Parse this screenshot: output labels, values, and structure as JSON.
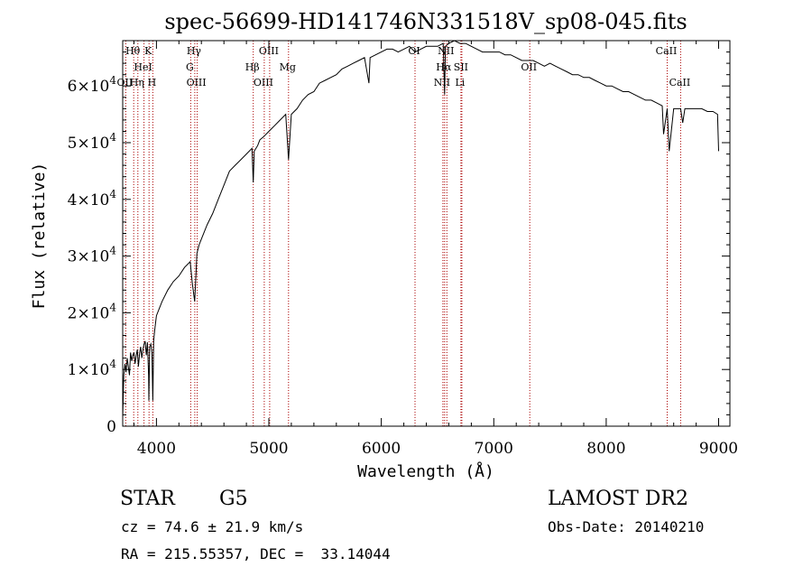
{
  "chart_data": {
    "type": "line",
    "title": "spec-56699-HD141746N331518V_sp08-045.fits",
    "xlabel": "Wavelength (Å)",
    "ylabel": "Flux (relative)",
    "xlim": [
      3700,
      9100
    ],
    "ylim": [
      0,
      68000
    ],
    "x_ticks": [
      4000,
      5000,
      6000,
      7000,
      8000,
      9000
    ],
    "x_tick_labels": [
      "4000",
      "5000",
      "6000",
      "7000",
      "8000",
      "9000"
    ],
    "y_ticks": [
      0,
      10000,
      20000,
      30000,
      40000,
      50000,
      60000
    ],
    "y_tick_labels": [
      {
        "mantissa": "0",
        "exp": ""
      },
      {
        "mantissa": "1×10",
        "exp": "4"
      },
      {
        "mantissa": "2×10",
        "exp": "4"
      },
      {
        "mantissa": "3×10",
        "exp": "4"
      },
      {
        "mantissa": "4×10",
        "exp": "4"
      },
      {
        "mantissa": "5×10",
        "exp": "4"
      },
      {
        "mantissa": "6×10",
        "exp": "4"
      }
    ],
    "grid": false,
    "series": [
      {
        "x": [
          3700,
          3710,
          3720,
          3730,
          3740,
          3750,
          3760,
          3770,
          3780,
          3790,
          3800,
          3810,
          3820,
          3830,
          3840,
          3850,
          3860,
          3870,
          3880,
          3890,
          3900,
          3910,
          3920,
          3930,
          3933,
          3940,
          3950,
          3960,
          3968,
          3975,
          3985,
          4000,
          4050,
          4100,
          4150,
          4200,
          4250,
          4300,
          4320,
          4340,
          4360,
          4380,
          4400,
          4450,
          4500,
          4550,
          4600,
          4650,
          4700,
          4750,
          4800,
          4850,
          4861,
          4870,
          4900,
          4920,
          4950,
          5000,
          5050,
          5100,
          5150,
          5175,
          5200,
          5250,
          5300,
          5350,
          5400,
          5450,
          5500,
          5550,
          5600,
          5650,
          5700,
          5750,
          5800,
          5850,
          5890,
          5900,
          5950,
          6000,
          6050,
          6100,
          6150,
          6200,
          6250,
          6300,
          6350,
          6400,
          6450,
          6500,
          6550,
          6563,
          6570,
          6600,
          6650,
          6700,
          6750,
          6800,
          6850,
          6900,
          6950,
          7000,
          7050,
          7100,
          7150,
          7200,
          7250,
          7300,
          7350,
          7400,
          7450,
          7500,
          7550,
          7600,
          7650,
          7700,
          7750,
          7800,
          7850,
          7900,
          7950,
          8000,
          8050,
          8100,
          8150,
          8200,
          8250,
          8300,
          8350,
          8400,
          8450,
          8498,
          8510,
          8542,
          8560,
          8600,
          8662,
          8680,
          8700,
          8750,
          8800,
          8850,
          8900,
          8950,
          8990,
          9000
        ],
        "y": [
          1500,
          9000,
          11000,
          9500,
          12000,
          10500,
          9000,
          13000,
          11500,
          12500,
          13000,
          11000,
          12500,
          13500,
          10500,
          12800,
          14000,
          12000,
          13500,
          14500,
          15000,
          12500,
          14800,
          9000,
          4500,
          14000,
          14500,
          13000,
          4500,
          15000,
          17000,
          19500,
          22000,
          24000,
          25500,
          26500,
          28000,
          29000,
          25000,
          22000,
          30500,
          32000,
          33000,
          35500,
          37500,
          40000,
          42500,
          45000,
          46000,
          47000,
          48000,
          49000,
          43000,
          48500,
          49500,
          50500,
          51000,
          52000,
          53000,
          54000,
          55000,
          47000,
          55000,
          56000,
          57500,
          58500,
          59000,
          60500,
          61000,
          61500,
          62000,
          63000,
          63500,
          64000,
          64500,
          65000,
          60500,
          65000,
          65500,
          66000,
          66500,
          66500,
          66000,
          66500,
          67000,
          66000,
          66500,
          67000,
          67000,
          67000,
          67500,
          58500,
          67000,
          67500,
          68000,
          67500,
          67500,
          67000,
          66500,
          66000,
          66000,
          66000,
          66000,
          65500,
          65500,
          65000,
          64500,
          64500,
          64500,
          64000,
          63500,
          64000,
          63500,
          63000,
          62500,
          62000,
          62000,
          61500,
          61500,
          61000,
          60500,
          60000,
          60000,
          59500,
          59000,
          59000,
          58500,
          58000,
          57500,
          57500,
          57000,
          56500,
          51500,
          56000,
          48500,
          56000,
          56000,
          53500,
          56000,
          56000,
          56000,
          56000,
          55500,
          55500,
          55000,
          48500
        ]
      }
    ],
    "spectral_lines": [
      {
        "label": "Hθ",
        "x": 3798,
        "row": 0
      },
      {
        "label": "K",
        "x": 3934,
        "row": 0
      },
      {
        "label": "HeI",
        "x": 3889,
        "row": 1
      },
      {
        "label": "OII",
        "x": 3727,
        "row": 2
      },
      {
        "label": "Hη",
        "x": 3835,
        "row": 2
      },
      {
        "label": "H",
        "x": 3968,
        "row": 2
      },
      {
        "label": "Hγ",
        "x": 4341,
        "row": 0
      },
      {
        "label": "G",
        "x": 4305,
        "row": 1
      },
      {
        "label": "OIII",
        "x": 4363,
        "row": 2
      },
      {
        "label": "OIII",
        "x": 5007,
        "row": 0
      },
      {
        "label": "Hβ",
        "x": 4861,
        "row": 1
      },
      {
        "label": "Mg",
        "x": 5175,
        "row": 1
      },
      {
        "label": "OIII",
        "x": 4959,
        "row": 2
      },
      {
        "label": "OI",
        "x": 6300,
        "row": 0
      },
      {
        "label": "NII",
        "x": 6583,
        "row": 0
      },
      {
        "label": "Hα",
        "x": 6563,
        "row": 1
      },
      {
        "label": "SII",
        "x": 6716,
        "row": 1
      },
      {
        "label": "NII",
        "x": 6548,
        "row": 2
      },
      {
        "label": "Li",
        "x": 6708,
        "row": 2
      },
      {
        "label": "OII",
        "x": 7320,
        "row": 1
      },
      {
        "label": "CaII",
        "x": 8542,
        "row": 0
      },
      {
        "label": "CaII",
        "x": 8662,
        "row": 2
      }
    ]
  },
  "info": {
    "object_class": "STAR",
    "subclass": "G5",
    "survey": "LAMOST DR2",
    "cz": "cz = 74.6 ± 21.9 km/s",
    "obs_date": "Obs-Date: 20140210",
    "coords": "RA = 215.55357, DEC =  33.14044"
  },
  "colors": {
    "spectrum": "#000000",
    "line_markers": "#aa0000",
    "axes": "#000000"
  }
}
